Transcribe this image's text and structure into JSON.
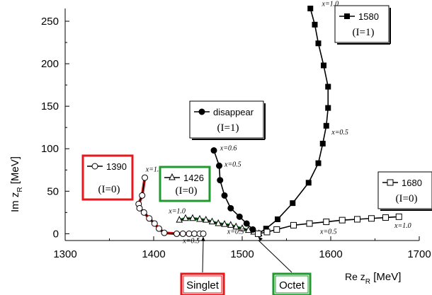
{
  "chart_data": {
    "type": "line",
    "xlabel": "Re z",
    "xlabel_sub": "R",
    "xunit": "[MeV]",
    "ylabel": "Im z",
    "ylabel_sub": "R",
    "yunit": "[MeV]",
    "xlim": [
      1300,
      1700
    ],
    "ylim": [
      -8,
      265
    ],
    "xticks": [
      1300,
      1400,
      1500,
      1600,
      1700
    ],
    "yticks": [
      0,
      50,
      100,
      150,
      200,
      250
    ],
    "grid": false,
    "series": [
      {
        "name": "1390",
        "isospin": "(I=0)",
        "color": "#000000",
        "highlight": "#e8171b",
        "marker": "circle-open",
        "legend_pos": "left",
        "legend_box_color": "#e8171b",
        "points": [
          [
            1390,
            66
          ],
          [
            1387,
            45
          ],
          [
            1383,
            35
          ],
          [
            1384,
            30
          ],
          [
            1389,
            25
          ],
          [
            1395,
            18
          ],
          [
            1401,
            12
          ],
          [
            1406,
            6
          ],
          [
            1412,
            1
          ],
          [
            1426,
            0
          ],
          [
            1433,
            0
          ],
          [
            1440,
            0
          ],
          [
            1446,
            0
          ],
          [
            1452,
            0
          ],
          [
            1456,
            0
          ]
        ],
        "labels": [
          {
            "text": "x=1.0",
            "x": 1391,
            "y": 73
          },
          {
            "text": "x=0.5",
            "x": 1433,
            "y": -11
          }
        ]
      },
      {
        "name": "1426",
        "isospin": "(I=0)",
        "color": "#000000",
        "highlight": "#1f9a2e",
        "marker": "triangle-open",
        "legend_box_color": "#1f9a2e",
        "points": [
          [
            1429,
            16
          ],
          [
            1436,
            18
          ],
          [
            1444,
            18
          ],
          [
            1452,
            17
          ],
          [
            1459,
            16
          ],
          [
            1466,
            14
          ],
          [
            1473,
            12
          ],
          [
            1480,
            11
          ],
          [
            1487,
            10
          ],
          [
            1493,
            8
          ],
          [
            1500,
            6
          ],
          [
            1507,
            4
          ],
          [
            1513,
            2
          ],
          [
            1519,
            0
          ]
        ],
        "labels": [
          {
            "text": "x=1.0",
            "x": 1417,
            "y": 24
          },
          {
            "text": "x=0.5",
            "x": 1483,
            "y": 0
          }
        ]
      },
      {
        "name": "disappear",
        "isospin": "(I=1)",
        "color": "#000000",
        "marker": "circle-filled",
        "points": [
          [
            1468,
            98
          ],
          [
            1474,
            80
          ],
          [
            1475,
            63
          ],
          [
            1480,
            45
          ],
          [
            1487,
            30
          ],
          [
            1497,
            20
          ],
          [
            1505,
            12
          ],
          [
            1512,
            5
          ],
          [
            1518,
            0
          ]
        ],
        "labels": [
          {
            "text": "x=0.6",
            "x": 1475,
            "y": 98
          },
          {
            "text": "x=0.5",
            "x": 1480,
            "y": 79
          }
        ]
      },
      {
        "name": "1580",
        "isospin": "(I=1)",
        "color": "#000000",
        "marker": "square-filled",
        "points": [
          [
            1577,
            265
          ],
          [
            1582,
            246
          ],
          [
            1586,
            224
          ],
          [
            1592,
            198
          ],
          [
            1597,
            173
          ],
          [
            1597,
            148
          ],
          [
            1595,
            127
          ],
          [
            1591,
            106
          ],
          [
            1586,
            83
          ],
          [
            1575,
            60
          ],
          [
            1557,
            36
          ],
          [
            1540,
            17
          ],
          [
            1527,
            6
          ],
          [
            1518,
            0
          ]
        ],
        "labels": [
          {
            "text": "x=1.0",
            "x": 1590,
            "y": 268
          },
          {
            "text": "x=0.5",
            "x": 1601,
            "y": 117
          }
        ]
      },
      {
        "name": "1680",
        "isospin": "(I=0)",
        "color": "#000000",
        "marker": "square-open",
        "points": [
          [
            1518,
            0
          ],
          [
            1528,
            2
          ],
          [
            1539,
            5
          ],
          [
            1558,
            10
          ],
          [
            1576,
            12
          ],
          [
            1595,
            14
          ],
          [
            1613,
            16
          ],
          [
            1630,
            17
          ],
          [
            1646,
            18
          ],
          [
            1662,
            19
          ],
          [
            1677,
            20
          ]
        ],
        "labels": [
          {
            "text": "x=0.5",
            "x": 1588,
            "y": 0
          },
          {
            "text": "x=1.0",
            "x": 1672,
            "y": 7
          }
        ]
      }
    ],
    "annotations": [
      {
        "text": "Singlet",
        "color": "#e8171b",
        "arrow_to": [
          1456,
          0
        ]
      },
      {
        "text": "Octet",
        "color": "#1f9a2e",
        "arrow_to": [
          1518,
          0
        ]
      }
    ]
  }
}
